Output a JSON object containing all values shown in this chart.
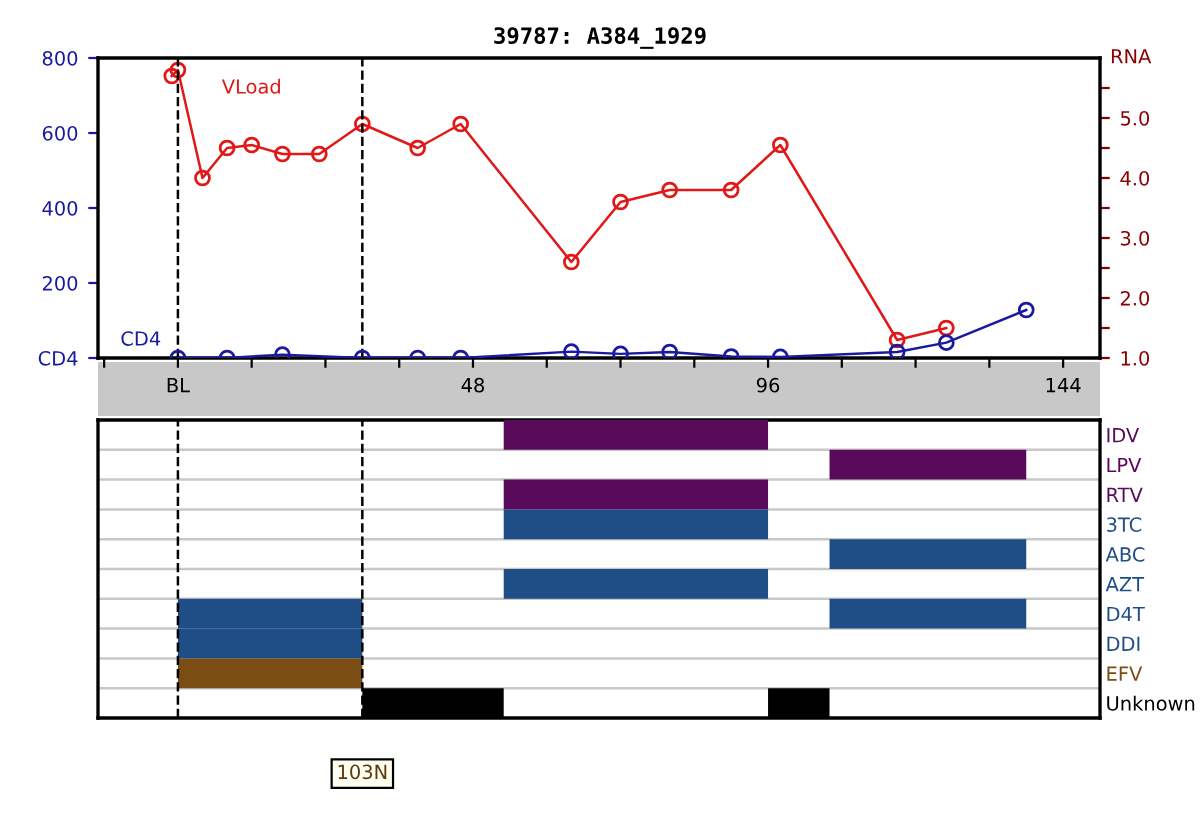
{
  "chart_data": [
    {
      "type": "line",
      "title": "39787: A384_1929",
      "y2label": "RNA",
      "series": [
        {
          "name": "VLoad",
          "color": "#e01818",
          "axis": "y2",
          "x": [
            -1,
            0,
            4,
            8,
            12,
            17,
            23,
            30,
            39,
            46,
            64,
            72,
            80,
            90,
            98,
            117,
            125
          ],
          "values": [
            5.7,
            5.8,
            4.0,
            4.5,
            4.55,
            4.4,
            4.4,
            4.9,
            4.5,
            4.9,
            2.6,
            3.6,
            3.8,
            3.8,
            4.55,
            1.3,
            1.5
          ]
        },
        {
          "name": "CD4",
          "color": "#1a1aa0",
          "x": [
            0,
            8,
            17,
            30,
            39,
            46,
            64,
            72,
            80,
            90,
            98,
            117,
            125,
            138
          ],
          "values": [
            0,
            0,
            9,
            0,
            0,
            0,
            17,
            11,
            16,
            4,
            3,
            16,
            41,
            128
          ]
        }
      ],
      "xlim": [
        -13,
        150
      ],
      "xticks": [
        {
          "value": -12,
          "label": null
        },
        {
          "value": 0,
          "label": "BL"
        },
        {
          "value": 12,
          "label": null
        },
        {
          "value": 24,
          "label": null
        },
        {
          "value": 36,
          "label": null
        },
        48,
        {
          "value": 60,
          "label": null
        },
        {
          "value": 72,
          "label": null
        },
        {
          "value": 84,
          "label": null
        },
        96,
        {
          "value": 108,
          "label": null
        },
        {
          "value": 120,
          "label": null
        },
        {
          "value": 132,
          "label": null
        },
        144
      ],
      "ylim": [
        0,
        800
      ],
      "yticks": [
        {
          "value": 0,
          "label": "CD4"
        },
        200,
        400,
        600,
        800
      ],
      "y2lim": [
        1,
        6
      ],
      "y2ticks": [
        {
          "value": 1,
          "label": "1.0"
        },
        {
          "value": 1.5,
          "label": null
        },
        {
          "value": 2,
          "label": "2.0"
        },
        {
          "value": 2.5,
          "label": null
        },
        {
          "value": 3,
          "label": "3.0"
        },
        {
          "value": 3.5,
          "label": null
        },
        {
          "value": 4,
          "label": "4.0"
        },
        {
          "value": 4.5,
          "label": null
        },
        {
          "value": 5,
          "label": "5.0"
        },
        {
          "value": 5.5,
          "label": null
        }
      ],
      "marker": "circle",
      "grid": false,
      "legend": false,
      "ref_lines": [
        {
          "axis": "x",
          "value": 0,
          "line_style": "dashed",
          "color": "#000000"
        },
        {
          "axis": "x",
          "value": 30,
          "line_style": "dashed",
          "color": "#000000"
        }
      ]
    },
    {
      "type": "bar",
      "orientation": "horizontal",
      "categories": [
        "IDV",
        "LPV",
        "RTV",
        "3TC",
        "ABC",
        "AZT",
        "D4T",
        "DDI",
        "EFV",
        "Unknown"
      ],
      "series": [
        {
          "base": [
            53,
            106,
            53,
            53,
            106,
            53,
            0,
            0,
            0,
            30
          ],
          "values": [
            43,
            32,
            43,
            43,
            32,
            43,
            30,
            30,
            30,
            23
          ],
          "colors": [
            "#5a0a5a",
            "#5a0a5a",
            "#5a0a5a",
            "#1f4e87",
            "#1f4e87",
            "#1f4e87",
            "#1f4e87",
            "#1f4e87",
            "#7a4e12",
            "#000000"
          ]
        },
        {
          "base": [
            null,
            null,
            null,
            null,
            null,
            null,
            106,
            null,
            null,
            96
          ],
          "values": [
            null,
            null,
            null,
            null,
            null,
            null,
            32,
            null,
            null,
            10
          ],
          "colors": [
            null,
            null,
            null,
            null,
            null,
            null,
            "#1f4e87",
            null,
            null,
            "#000000"
          ]
        }
      ],
      "xlim": [
        -13,
        150
      ],
      "tick_labels": "y",
      "grid": "y",
      "ref_lines": [
        {
          "axis": "x",
          "value": 0,
          "line_style": "dashed",
          "color": "#000000"
        },
        {
          "axis": "x",
          "value": 30,
          "line_style": "dashed",
          "color": "#000000"
        }
      ],
      "annotations": [
        "103N"
      ]
    }
  ]
}
